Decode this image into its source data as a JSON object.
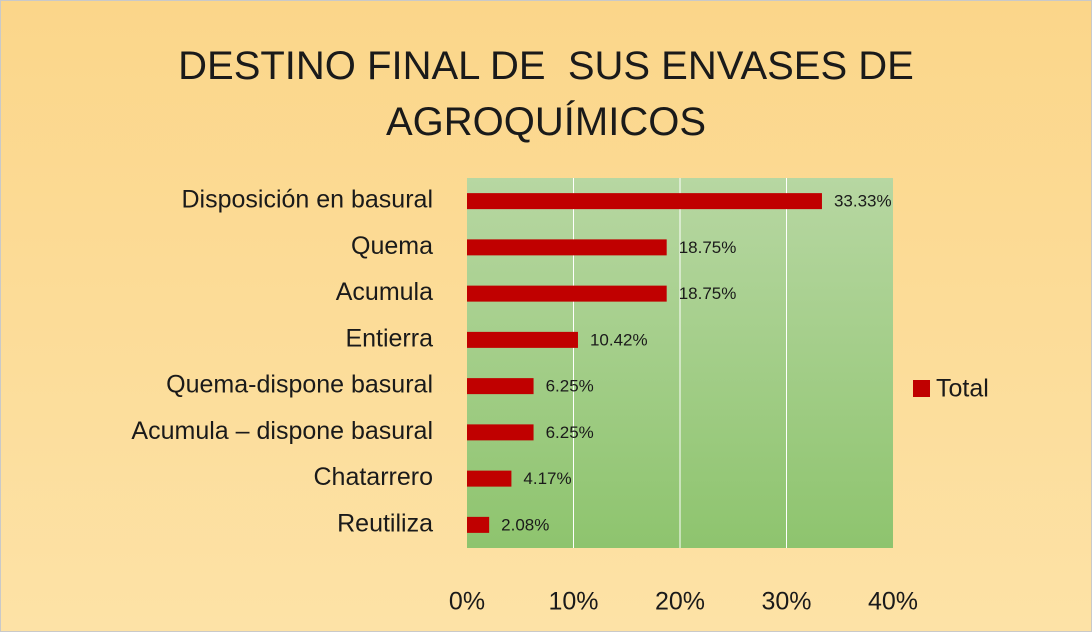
{
  "chart_data": {
    "type": "barh",
    "title": "DESTINO FINAL DE  SUS ENVASES DE AGROQUÍMICOS",
    "categories": [
      "Disposición en basural",
      "Quema",
      "Acumula",
      "Entierra",
      "Quema-dispone basural",
      "Acumula – dispone basural",
      "Chatarrero",
      "Reutiliza"
    ],
    "series": [
      {
        "name": "Total",
        "color": "#c00000",
        "values": [
          33.33,
          18.75,
          18.75,
          10.42,
          6.25,
          6.25,
          4.17,
          2.08
        ],
        "value_labels": [
          "33.33%",
          "18.75%",
          "18.75%",
          "10.42%",
          "6.25%",
          "6.25%",
          "4.17%",
          "2.08%"
        ]
      }
    ],
    "xlim": [
      0,
      40
    ],
    "xticks": [
      {
        "value": 0,
        "label": "0%"
      },
      {
        "value": 10,
        "label": "10%"
      },
      {
        "value": 20,
        "label": "20%"
      },
      {
        "value": 30,
        "label": "30%"
      },
      {
        "value": 40,
        "label": "40%"
      }
    ],
    "grid": true,
    "legend": "right"
  }
}
